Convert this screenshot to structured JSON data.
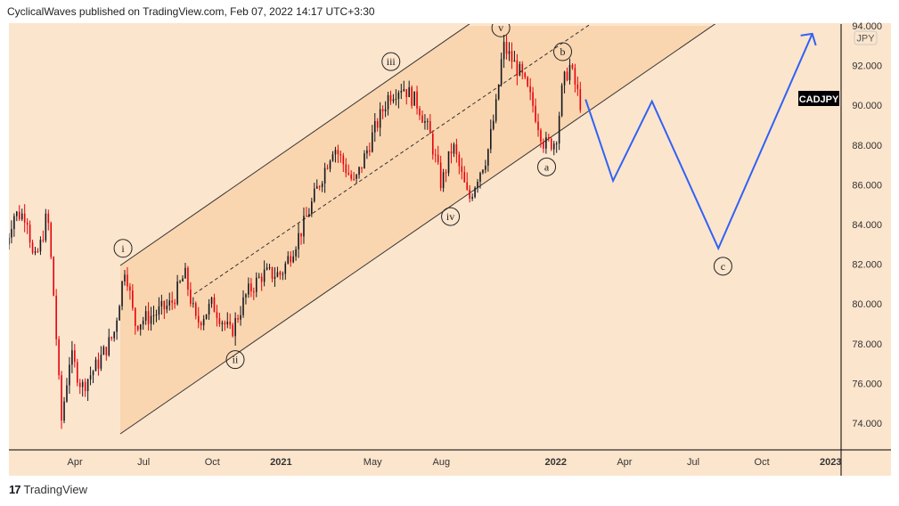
{
  "header": {
    "text": "CyclicalWaves published on TradingView.com, Feb 07, 2022 14:17 UTC+3:30"
  },
  "footer": {
    "brand": "TradingView"
  },
  "chart_data": {
    "type": "candlestick",
    "symbol": "CADJPY",
    "currency": "JPY",
    "y_ticks": [
      "94.000",
      "92.000",
      "90.000",
      "88.000",
      "86.000",
      "84.000",
      "82.000",
      "80.000",
      "78.000",
      "76.000",
      "74.000"
    ],
    "ylim": [
      73,
      95
    ],
    "x_ticks": [
      "Apr",
      "Jul",
      "Oct",
      "2021",
      "May",
      "Aug",
      "2022",
      "Apr",
      "Jul",
      "Oct",
      "2023"
    ],
    "x_unit": "months since Jan 2020",
    "price_path": [
      [
        0,
        83
      ],
      [
        0.3,
        84.5
      ],
      [
        0.9,
        84.5
      ],
      [
        1.2,
        82
      ],
      [
        1.5,
        83
      ],
      [
        1.8,
        84.6
      ],
      [
        2.1,
        80
      ],
      [
        2.4,
        74
      ],
      [
        2.8,
        77.5
      ],
      [
        3.3,
        75.8
      ],
      [
        4.0,
        77
      ],
      [
        4.7,
        78.5
      ],
      [
        5.2,
        82
      ],
      [
        5.6,
        79
      ],
      [
        6.5,
        79.5
      ],
      [
        7.2,
        80
      ],
      [
        7.8,
        81.5
      ],
      [
        8.3,
        79
      ],
      [
        9.0,
        80
      ],
      [
        9.8,
        78.5
      ],
      [
        10.5,
        80.5
      ],
      [
        11.2,
        81.5
      ],
      [
        12,
        81.5
      ],
      [
        13,
        84
      ],
      [
        14.3,
        88
      ],
      [
        15.2,
        86
      ],
      [
        16,
        88.5
      ],
      [
        16.7,
        90.5
      ],
      [
        17.3,
        91
      ],
      [
        18,
        90
      ],
      [
        18.5,
        88.5
      ],
      [
        19.0,
        86
      ],
      [
        19.5,
        88
      ],
      [
        20.2,
        85.2
      ],
      [
        20.6,
        86.5
      ],
      [
        21,
        87.5
      ],
      [
        21.4,
        90
      ],
      [
        21.7,
        93
      ],
      [
        22.5,
        91.5
      ],
      [
        23.0,
        90
      ],
      [
        23.5,
        88
      ],
      [
        24.0,
        88.2
      ],
      [
        24.3,
        91
      ],
      [
        24.6,
        92
      ],
      [
        25.1,
        90
      ]
    ],
    "projection": [
      [
        25.3,
        90.3
      ],
      [
        26.5,
        86.2
      ],
      [
        28.2,
        90.2
      ],
      [
        31.1,
        82.8
      ],
      [
        35.2,
        93.6
      ]
    ],
    "wave_labels": [
      {
        "label": "i",
        "month": 5.1,
        "price": 82.8
      },
      {
        "label": "ii",
        "month": 10,
        "price": 77.2
      },
      {
        "label": "iii",
        "month": 16.8,
        "price": 92.2
      },
      {
        "label": "iv",
        "month": 19.4,
        "price": 84.4
      },
      {
        "label": "v",
        "month": 21.6,
        "price": 93.9
      },
      {
        "label": "a",
        "month": 23.6,
        "price": 86.9
      },
      {
        "label": "b",
        "month": 24.3,
        "price": 92.7
      },
      {
        "label": "c",
        "month": 31.3,
        "price": 81.9
      }
    ],
    "colors": {
      "background": "#fce5cd",
      "channel": "#f9d6b0",
      "up": "#131722",
      "down": "#e8000b",
      "projection": "#2f62f5"
    }
  }
}
